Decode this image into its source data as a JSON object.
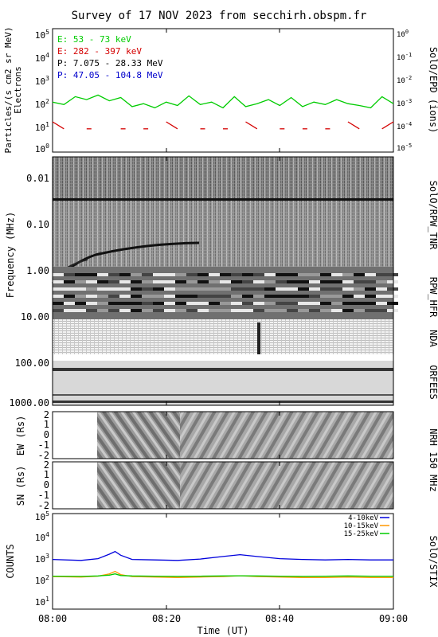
{
  "title": "Survey of 17 NOV 2023 from secchirh.obspm.fr",
  "colors": {
    "e53": "#00cc00",
    "e282": "#d40000",
    "p7": "#000000",
    "p47": "#0000cc",
    "stix_4_10": "#0000dd",
    "stix_10_15": "#ff9900",
    "stix_15_25": "#00cc00"
  },
  "panels": {
    "epd": {
      "ylabel_top": "Particles/(s cm2 sr MeV)",
      "ylabel_bottom": "Electrons",
      "right_label": "SolO/EPD (ions)",
      "left_ticks": [
        {
          "base": "10",
          "exp": "5"
        },
        {
          "base": "10",
          "exp": "4"
        },
        {
          "base": "10",
          "exp": "3"
        },
        {
          "base": "10",
          "exp": "2"
        },
        {
          "base": "10",
          "exp": "1"
        },
        {
          "base": "10",
          "exp": "0"
        }
      ],
      "right_ticks": [
        {
          "base": "10",
          "exp": "0"
        },
        {
          "base": "10",
          "exp": "-1"
        },
        {
          "base": "10",
          "exp": "-2"
        },
        {
          "base": "10",
          "exp": "-3"
        },
        {
          "base": "10",
          "exp": "-4"
        },
        {
          "base": "10",
          "exp": "-5"
        }
      ],
      "legend": [
        "E: 53 - 73 keV",
        "E: 282 - 397 keV",
        "P: 7.075 - 28.33 MeV",
        "P: 47.05 - 104.8 MeV"
      ]
    },
    "spectrum": {
      "ylabel": "Frequency (MHz)",
      "ticks": [
        "0.01",
        "0.10",
        "1.00",
        "10.00",
        "100.00",
        "1000.00"
      ],
      "labels": [
        "SolO/RPW_TNR",
        "RPW_HFR",
        "NDA",
        "ORFEES"
      ]
    },
    "nrh": {
      "label": "NRH 150 MHz",
      "ew_ylabel": "EW (Rs)",
      "sn_ylabel": "SN (Rs)",
      "ticks": [
        "2",
        "1",
        "0",
        "-1",
        "-2"
      ]
    },
    "stix": {
      "ylabel": "COUNTS",
      "right_label": "SolO/STIX",
      "ticks": [
        {
          "base": "10",
          "exp": "5"
        },
        {
          "base": "10",
          "exp": "4"
        },
        {
          "base": "10",
          "exp": "3"
        },
        {
          "base": "10",
          "exp": "2"
        },
        {
          "base": "10",
          "exp": "1"
        }
      ],
      "legend": [
        "4-10keV",
        "10-15keV",
        "15-25keV"
      ]
    }
  },
  "xaxis": {
    "ticks": [
      "08:00",
      "08:20",
      "08:40",
      "09:00"
    ],
    "label": "Time (UT)"
  },
  "chart_data": [
    {
      "type": "line",
      "panel": "SolO/EPD",
      "yscale": "log",
      "ylim": [
        0.5,
        100000
      ],
      "xlim": [
        "08:00",
        "09:00"
      ],
      "x": [
        "08:00",
        "08:02",
        "08:04",
        "08:06",
        "08:08",
        "08:10",
        "08:12",
        "08:14",
        "08:16",
        "08:18",
        "08:20",
        "08:22",
        "08:24",
        "08:26",
        "08:28",
        "08:30",
        "08:32",
        "08:34",
        "08:36",
        "08:38",
        "08:40",
        "08:42",
        "08:44",
        "08:46",
        "08:48",
        "08:50",
        "08:52",
        "08:54",
        "08:56",
        "08:58",
        "09:00"
      ],
      "series": [
        {
          "name": "E: 53 - 73 keV",
          "values": [
            70,
            55,
            120,
            90,
            140,
            80,
            110,
            45,
            60,
            40,
            70,
            50,
            130,
            55,
            70,
            40,
            120,
            45,
            60,
            90,
            50,
            110,
            45,
            70,
            55,
            90,
            60,
            50,
            40,
            120,
            60
          ]
        },
        {
          "name": "E: 282 - 397 keV",
          "values": [
            10,
            5,
            null,
            5,
            null,
            null,
            5,
            null,
            5,
            null,
            10,
            5,
            null,
            5,
            null,
            5,
            null,
            10,
            5,
            null,
            5,
            null,
            5,
            null,
            5,
            null,
            10,
            5,
            null,
            5,
            10
          ]
        }
      ]
    },
    {
      "type": "line",
      "panel": "SolO/STIX",
      "yscale": "log",
      "ylim": [
        10,
        100000
      ],
      "xlim": [
        "08:00",
        "09:00"
      ],
      "x": [
        "08:00",
        "08:05",
        "08:08",
        "08:10",
        "08:11",
        "08:12",
        "08:14",
        "08:18",
        "08:22",
        "08:26",
        "08:30",
        "08:33",
        "08:36",
        "08:40",
        "08:44",
        "08:48",
        "08:52",
        "08:56",
        "09:00"
      ],
      "series": [
        {
          "name": "4-10keV",
          "values": [
            1200,
            1100,
            1300,
            2000,
            2600,
            1800,
            1200,
            1150,
            1100,
            1250,
            1600,
            1900,
            1600,
            1300,
            1200,
            1150,
            1200,
            1150,
            1150
          ]
        },
        {
          "name": "10-15keV",
          "values": [
            230,
            220,
            240,
            300,
            380,
            280,
            230,
            220,
            210,
            220,
            230,
            250,
            230,
            220,
            210,
            210,
            220,
            210,
            210
          ]
        },
        {
          "name": "15-25keV",
          "values": [
            240,
            235,
            245,
            265,
            300,
            255,
            245,
            240,
            235,
            240,
            245,
            250,
            245,
            240,
            235,
            240,
            245,
            240,
            240
          ]
        }
      ]
    }
  ]
}
